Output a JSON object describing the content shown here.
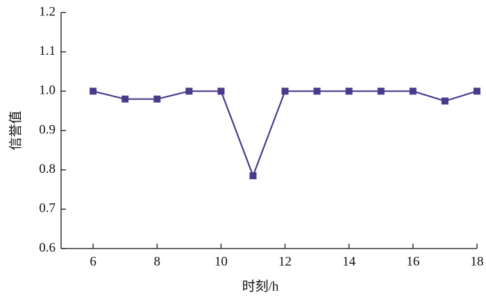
{
  "chart_data": {
    "type": "line",
    "x_label": "时刻/h",
    "y_label": "信誉值",
    "x": [
      6,
      7,
      8,
      9,
      10,
      11,
      12,
      13,
      14,
      15,
      16,
      17,
      18
    ],
    "series": [
      {
        "color": "#4b3a8c",
        "values": [
          1.0,
          0.98,
          0.98,
          1.0,
          1.0,
          0.785,
          1.0,
          1.0,
          1.0,
          1.0,
          1.0,
          0.975,
          1.0
        ]
      }
    ],
    "xlim": [
      5,
      18
    ],
    "xticks": [
      6,
      8,
      10,
      12,
      14,
      16,
      18
    ],
    "ylim": [
      0.6,
      1.2
    ],
    "yticks": [
      0.6,
      0.7,
      0.8,
      0.9,
      {
        "value": 1.0,
        "label": "1.0"
      },
      1.1,
      1.2
    ],
    "marker": "square"
  }
}
